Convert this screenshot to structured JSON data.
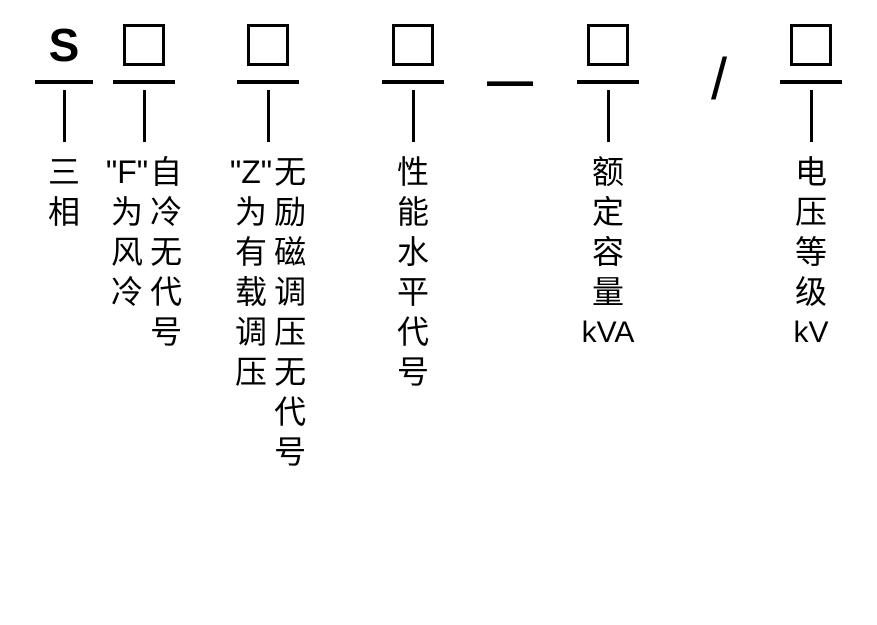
{
  "diagram": {
    "background_color": "#ffffff",
    "stroke_color": "#000000",
    "font_color": "#000000",
    "box_size": 42,
    "stroke_width": 3,
    "symbol_fontsize": 46,
    "label_fontsize": 32,
    "unit_fontsize": 30
  },
  "slots": [
    {
      "id": "s",
      "symbol": "S",
      "underline_w": 58,
      "vline_h": 52
    },
    {
      "id": "cooling",
      "symbol": "box",
      "underline_w": 62,
      "vline_h": 52
    },
    {
      "id": "tap",
      "symbol": "box",
      "underline_w": 62,
      "vline_h": 52
    },
    {
      "id": "perf",
      "symbol": "box",
      "underline_w": 62,
      "vline_h": 52
    },
    {
      "id": "dash",
      "symbol": "—"
    },
    {
      "id": "capacity",
      "symbol": "box",
      "underline_w": 62,
      "vline_h": 52
    },
    {
      "id": "slash",
      "symbol": "/"
    },
    {
      "id": "voltage",
      "symbol": "box",
      "underline_w": 62,
      "vline_h": 52
    }
  ],
  "labels": {
    "s": {
      "cols": [
        [
          "三",
          "相"
        ]
      ]
    },
    "cooling": {
      "cols": [
        [
          "\"F\"",
          "为",
          "风",
          "冷"
        ],
        [
          "自",
          "冷",
          "无",
          "代",
          "号"
        ]
      ],
      "colgap": 2
    },
    "tap": {
      "cols": [
        [
          "\"Z\"",
          "为",
          "有",
          "载",
          "调",
          "压"
        ],
        [
          "无",
          "励",
          "磁",
          "调",
          "压",
          "无",
          "代",
          "号"
        ]
      ],
      "colgap": 2
    },
    "perf": {
      "cols": [
        [
          "性",
          "能",
          "水",
          "平",
          "代",
          "号"
        ]
      ]
    },
    "capacity": {
      "cols": [
        [
          "额",
          "定",
          "容",
          "量"
        ]
      ],
      "unit": "kVA"
    },
    "voltage": {
      "cols": [
        [
          "电",
          "压",
          "等",
          "级"
        ]
      ],
      "unit": "kV"
    }
  },
  "layout": {
    "slot_widths": [
      68,
      92,
      156,
      134,
      60,
      136,
      86,
      98
    ],
    "label_widths": [
      68,
      92,
      156,
      134,
      60,
      136,
      86,
      98
    ]
  }
}
